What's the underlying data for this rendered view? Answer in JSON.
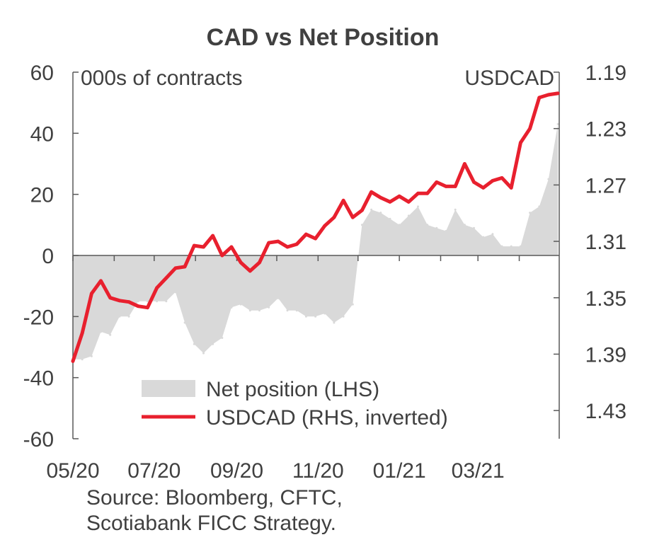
{
  "chart_data": {
    "type": "area+line",
    "title": "CAD vs Net Position",
    "left_axis": {
      "unit_label": "000s of contracts",
      "range": [
        -60,
        60
      ],
      "ticks": [
        60,
        40,
        20,
        0,
        -20,
        -40,
        -60
      ]
    },
    "right_axis": {
      "unit_label": "USDCAD",
      "range": [
        1.19,
        1.45
      ],
      "inverted": true,
      "ticks": [
        "1.19",
        "1.23",
        "1.27",
        "1.31",
        "1.35",
        "1.39",
        "1.43"
      ]
    },
    "x_axis": {
      "ticks": [
        "05/20",
        "07/20",
        "09/20",
        "11/20",
        "01/21",
        "03/21"
      ],
      "start": "2020-05-01",
      "end": "2021-05-01"
    },
    "legend": {
      "placement": "bottom-center"
    },
    "series": [
      {
        "name": "Net position (LHS)",
        "kind": "area",
        "color": "#d9d9d9",
        "x": [
          "2020-05-01",
          "2020-05-08",
          "2020-05-15",
          "2020-05-22",
          "2020-05-29",
          "2020-06-05",
          "2020-06-12",
          "2020-06-19",
          "2020-06-26",
          "2020-07-03",
          "2020-07-10",
          "2020-07-17",
          "2020-07-24",
          "2020-07-31",
          "2020-08-07",
          "2020-08-14",
          "2020-08-21",
          "2020-08-28",
          "2020-09-04",
          "2020-09-11",
          "2020-09-18",
          "2020-09-25",
          "2020-10-02",
          "2020-10-09",
          "2020-10-16",
          "2020-10-23",
          "2020-10-30",
          "2020-11-06",
          "2020-11-13",
          "2020-11-20",
          "2020-11-27",
          "2020-12-04",
          "2020-12-11",
          "2020-12-18",
          "2020-12-25",
          "2021-01-01",
          "2021-01-08",
          "2021-01-15",
          "2021-01-22",
          "2021-01-29",
          "2021-02-05",
          "2021-02-12",
          "2021-02-19",
          "2021-02-26",
          "2021-03-05",
          "2021-03-12",
          "2021-03-19",
          "2021-03-26",
          "2021-04-02",
          "2021-04-09",
          "2021-04-16",
          "2021-04-23",
          "2021-04-30"
        ],
        "values": [
          -34,
          -34,
          -33,
          -25,
          -26,
          -20,
          -20,
          -15,
          -15,
          -15,
          -15,
          -12,
          -22,
          -29,
          -32,
          -29,
          -27,
          -17,
          -16,
          -18,
          -18,
          -17,
          -14,
          -18,
          -18,
          -20,
          -20,
          -19,
          -22,
          -20,
          -16,
          10,
          15,
          14,
          12,
          10,
          13,
          16,
          10,
          9,
          8,
          15,
          10,
          9,
          6,
          7,
          3,
          3,
          3,
          14,
          16,
          25,
          43
        ]
      },
      {
        "name": "USDCAD (RHS, inverted)",
        "kind": "line",
        "color": "#e8202e",
        "x": [
          "2020-05-01",
          "2020-05-08",
          "2020-05-15",
          "2020-05-22",
          "2020-05-29",
          "2020-06-05",
          "2020-06-12",
          "2020-06-19",
          "2020-06-26",
          "2020-07-03",
          "2020-07-10",
          "2020-07-17",
          "2020-07-24",
          "2020-07-31",
          "2020-08-07",
          "2020-08-14",
          "2020-08-21",
          "2020-08-28",
          "2020-09-04",
          "2020-09-11",
          "2020-09-18",
          "2020-09-25",
          "2020-10-02",
          "2020-10-09",
          "2020-10-16",
          "2020-10-23",
          "2020-10-30",
          "2020-11-06",
          "2020-11-13",
          "2020-11-20",
          "2020-11-27",
          "2020-12-04",
          "2020-12-11",
          "2020-12-18",
          "2020-12-25",
          "2021-01-01",
          "2021-01-08",
          "2021-01-15",
          "2021-01-22",
          "2021-01-29",
          "2021-02-05",
          "2021-02-12",
          "2021-02-19",
          "2021-02-26",
          "2021-03-05",
          "2021-03-12",
          "2021-03-19",
          "2021-03-26",
          "2021-04-02",
          "2021-04-09",
          "2021-04-16",
          "2021-04-23",
          "2021-04-30"
        ],
        "values": [
          1.395,
          1.375,
          1.347,
          1.338,
          1.35,
          1.352,
          1.353,
          1.356,
          1.357,
          1.343,
          1.336,
          1.329,
          1.328,
          1.313,
          1.314,
          1.306,
          1.32,
          1.314,
          1.325,
          1.331,
          1.325,
          1.311,
          1.31,
          1.314,
          1.312,
          1.305,
          1.308,
          1.299,
          1.293,
          1.281,
          1.293,
          1.288,
          1.275,
          1.279,
          1.282,
          1.278,
          1.282,
          1.276,
          1.276,
          1.268,
          1.271,
          1.271,
          1.255,
          1.268,
          1.272,
          1.267,
          1.265,
          1.272,
          1.24,
          1.23,
          1.208,
          1.206,
          1.205
        ]
      }
    ]
  },
  "source": {
    "line1": "Source: Bloomberg, CFTC,",
    "line2": "Scotiabank FICC  Strategy."
  }
}
